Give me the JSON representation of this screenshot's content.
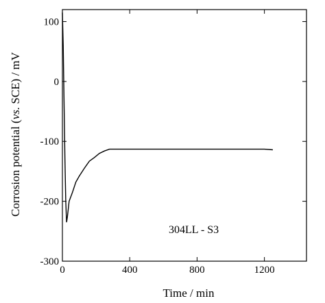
{
  "chart_data": {
    "type": "line",
    "title": "",
    "xlabel": "Time / min",
    "ylabel_prefix": "Corrosion potential (",
    "ylabel_italic": "vs.",
    "ylabel_suffix": " SCE) / mV",
    "xlim": [
      0,
      1450
    ],
    "ylim": [
      -300,
      120
    ],
    "xticks": [
      0,
      400,
      800,
      1200
    ],
    "yticks": [
      100,
      0,
      -100,
      -200,
      -300
    ],
    "grid": false,
    "annotation": "304LL - S3",
    "series": [
      {
        "color": "#000000",
        "x": [
          0,
          5,
          10,
          15,
          20,
          25,
          30,
          40,
          60,
          80,
          100,
          130,
          160,
          190,
          220,
          250,
          280,
          400,
          600,
          800,
          1000,
          1200,
          1250
        ],
        "y": [
          115,
          60,
          -40,
          -130,
          -200,
          -235,
          -225,
          -200,
          -185,
          -168,
          -158,
          -145,
          -133,
          -127,
          -120,
          -116,
          -113,
          -113,
          -113,
          -113,
          -113,
          -113,
          -114
        ]
      }
    ]
  }
}
